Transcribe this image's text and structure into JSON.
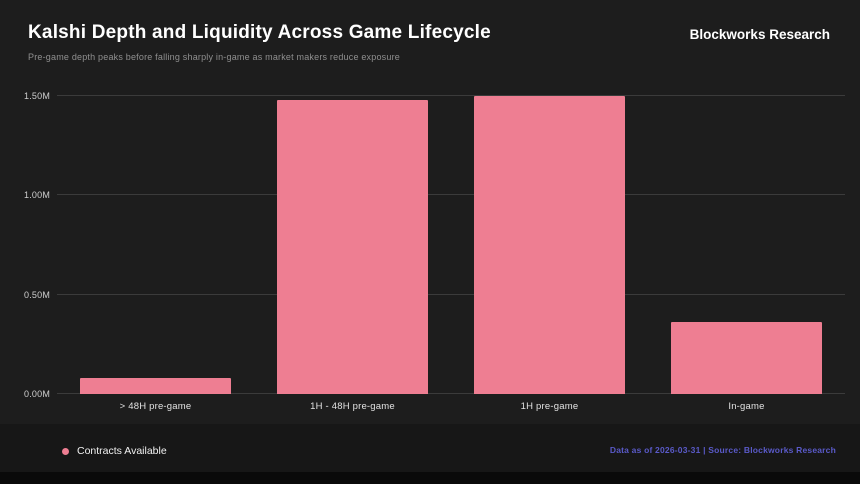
{
  "header": {
    "title": "Kalshi Depth and Liquidity Across Game Lifecycle",
    "subtitle": "Pre-game depth peaks before falling sharply in-game as market makers reduce exposure",
    "brand": "Blockworks Research"
  },
  "chart_data": {
    "type": "bar",
    "title": "Kalshi Depth and Liquidity Across Game Lifecycle",
    "categories": [
      "> 48H pre-game",
      "1H - 48H pre-game",
      "1H pre-game",
      "In-game"
    ],
    "series": [
      {
        "name": "Contracts Available",
        "values": [
          0.08,
          1.48,
          1.5,
          0.36
        ]
      }
    ],
    "xlabel": "",
    "ylabel": "",
    "ylim": [
      0,
      1.5
    ],
    "yticks": [
      0,
      0.5,
      1.0,
      1.5
    ],
    "ytick_labels": [
      "0.00M",
      "0.50M",
      "1.00M",
      "1.50M"
    ],
    "bar_color": "#ee7e92",
    "grid": true,
    "legend_position": "bottom-left"
  },
  "legend": {
    "label": "Contracts Available",
    "marker_color": "#ee7e92"
  },
  "footer": {
    "note": "Data as of 2026-03-31 | Source: Blockworks Research"
  }
}
